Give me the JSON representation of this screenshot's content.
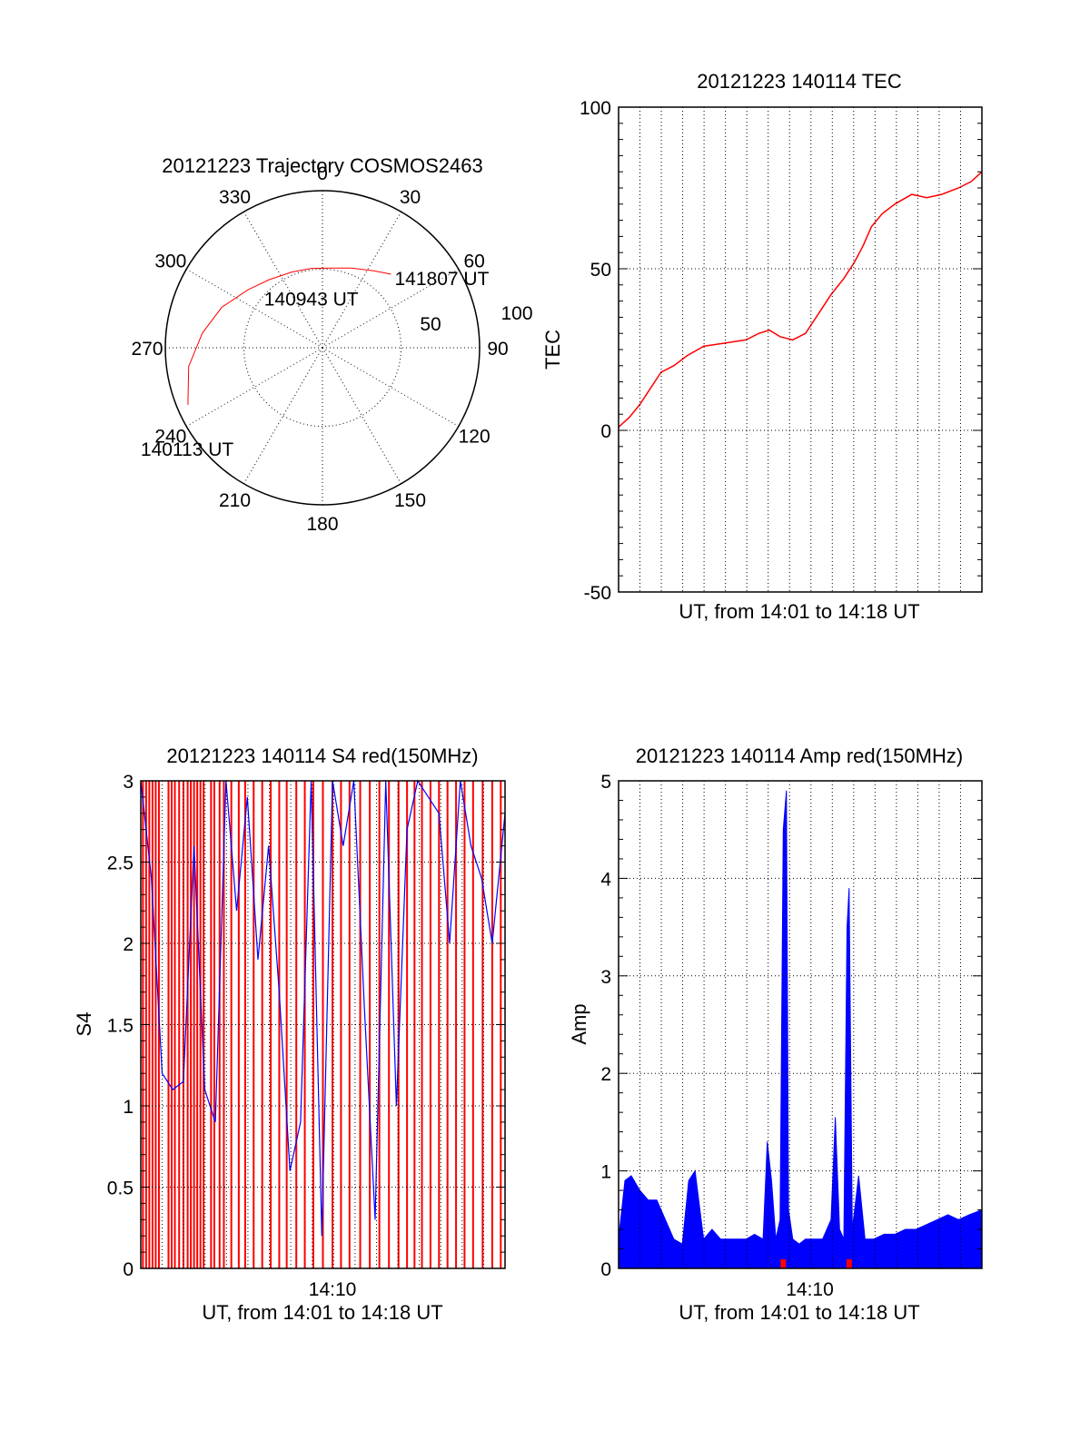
{
  "colors": {
    "red": "#ff0000",
    "blue": "#0000ff",
    "axis": "#000000",
    "grid": "#000000"
  },
  "chart_data": [
    {
      "id": "polar",
      "type": "polar",
      "title": "20121223 Trajectory COSMOS2463",
      "angle_ticks": [
        "0",
        "30",
        "60",
        "90",
        "120",
        "150",
        "180",
        "210",
        "240",
        "270",
        "300",
        "330"
      ],
      "radius_ticks": [
        "50",
        "100"
      ],
      "radius_range": [
        0,
        100
      ],
      "trajectory": {
        "series_color": "red",
        "points": [
          [
            247,
            93
          ],
          [
            262,
            86
          ],
          [
            277,
            77
          ],
          [
            292,
            69
          ],
          [
            308,
            60
          ],
          [
            322,
            55
          ],
          [
            338,
            52
          ],
          [
            352,
            51
          ],
          [
            6,
            51
          ],
          [
            20,
            54
          ],
          [
            34,
            59
          ],
          [
            43,
            64
          ]
        ]
      },
      "annotations": [
        {
          "text": "141807 UT",
          "angle": 43,
          "r": 64
        },
        {
          "text": "140943 UT",
          "angle": 352,
          "r": 51
        },
        {
          "text": "140113 UT",
          "angle": 247,
          "r": 93
        }
      ]
    },
    {
      "id": "tec",
      "type": "line",
      "title": "20121223 140114 TEC",
      "xlabel": "UT, from 14:01 to 14:18 UT",
      "ylabel": "TEC",
      "ylim": [
        -50,
        100
      ],
      "yticks": [
        "-50",
        "0",
        "50",
        "100"
      ],
      "xlim_minutes": [
        1.0,
        18.1
      ],
      "grid": true,
      "series": [
        {
          "color": "red",
          "x": [
            1.0,
            1.5,
            2.0,
            2.5,
            3.0,
            3.6,
            4.2,
            5.0,
            6.0,
            7.0,
            7.6,
            8.1,
            8.6,
            9.2,
            9.8,
            10.4,
            11.0,
            11.6,
            12.1,
            12.5,
            12.9,
            13.4,
            14.0,
            14.8,
            15.5,
            16.2,
            17.0,
            17.6,
            18.1
          ],
          "y": [
            1,
            4,
            8,
            13,
            18,
            20,
            23,
            26,
            27,
            28,
            30,
            31,
            29,
            28,
            30,
            36,
            42,
            47,
            52,
            57,
            63,
            67,
            70,
            73,
            72,
            73,
            75,
            77,
            80
          ]
        }
      ]
    },
    {
      "id": "s4",
      "type": "line",
      "title": "20121223 140114 S4 red(150MHz)",
      "xlabel": "UT, from 14:01 to 14:18 UT",
      "ylabel": "S4",
      "ylim": [
        0,
        3
      ],
      "yticks": [
        "0",
        "0.5",
        "1",
        "1.5",
        "2",
        "2.5",
        "3"
      ],
      "xticks": [
        {
          "label": "14:10",
          "x": 10.0
        }
      ],
      "xlim_minutes": [
        1.0,
        18.1
      ],
      "grid": true,
      "series": [
        {
          "color": "blue",
          "x": [
            1.0,
            1.5,
            2.0,
            2.5,
            3.0,
            3.5,
            4.0,
            4.5,
            5.0,
            5.5,
            6.0,
            6.5,
            7.0,
            7.5,
            8.0,
            8.5,
            9.0,
            9.5,
            10.0,
            10.5,
            11.0,
            11.5,
            12.0,
            12.5,
            13.0,
            13.5,
            14.0,
            14.5,
            15.0,
            15.5,
            16.0,
            16.5,
            17.0,
            17.5,
            18.1
          ],
          "y": [
            3,
            2.4,
            1.2,
            1.1,
            1.15,
            2.6,
            1.1,
            0.9,
            3,
            2.2,
            2.9,
            1.9,
            2.6,
            1.7,
            0.6,
            0.9,
            3,
            0.2,
            3,
            2.6,
            3,
            1.6,
            0.3,
            3,
            1.0,
            2.7,
            3,
            2.9,
            2.8,
            2.0,
            3,
            2.6,
            2.4,
            2.0,
            2.8
          ]
        }
      ],
      "red_spikes_x": [
        1.1,
        1.25,
        1.4,
        1.55,
        1.7,
        1.85,
        2.3,
        2.45,
        2.6,
        2.8,
        3.0,
        3.2,
        3.35,
        3.5,
        3.65,
        3.8,
        3.95,
        4.3,
        4.45,
        4.7,
        4.9,
        5.25,
        5.6,
        5.9,
        6.3,
        6.7,
        7.1,
        7.5,
        7.85,
        8.3,
        8.7,
        9.1,
        9.55,
        10.0,
        10.4,
        10.8,
        11.3,
        11.75,
        12.2,
        12.65,
        13.1,
        13.5,
        13.85,
        14.2,
        14.6,
        15.0,
        15.4,
        15.8,
        16.2,
        16.6,
        17.05,
        17.5,
        17.9
      ]
    },
    {
      "id": "amp",
      "type": "line",
      "title": "20121223 140114 Amp red(150MHz)",
      "xlabel": "UT, from 14:01 to 14:18 UT",
      "ylabel": "Amp",
      "ylim": [
        0,
        5
      ],
      "yticks": [
        "0",
        "1",
        "2",
        "3",
        "4",
        "5"
      ],
      "xticks": [
        {
          "label": "14:10",
          "x": 10.0
        }
      ],
      "xlim_minutes": [
        1.0,
        18.1
      ],
      "grid": true,
      "series": [
        {
          "color": "blue",
          "x": [
            1.0,
            1.3,
            1.6,
            2.0,
            2.4,
            2.8,
            3.2,
            3.6,
            4.0,
            4.3,
            4.6,
            5.0,
            5.4,
            5.8,
            6.2,
            6.6,
            7.0,
            7.4,
            7.8,
            8.0,
            8.2,
            8.4,
            8.6,
            8.75,
            8.9,
            9.0,
            9.2,
            9.5,
            9.8,
            10.2,
            10.6,
            11.0,
            11.2,
            11.4,
            11.6,
            11.75,
            11.85,
            12.0,
            12.3,
            12.6,
            13.0,
            13.5,
            14.0,
            14.5,
            15.0,
            15.5,
            16.0,
            16.5,
            17.0,
            17.5,
            18.1
          ],
          "y": [
            0.3,
            0.9,
            0.95,
            0.8,
            0.7,
            0.7,
            0.5,
            0.3,
            0.25,
            0.9,
            1.0,
            0.3,
            0.4,
            0.3,
            0.3,
            0.3,
            0.3,
            0.35,
            0.3,
            1.3,
            0.9,
            0.3,
            0.5,
            4.5,
            4.9,
            0.6,
            0.3,
            0.25,
            0.3,
            0.3,
            0.3,
            0.5,
            1.55,
            0.4,
            0.3,
            3.5,
            3.9,
            0.4,
            0.95,
            0.3,
            0.3,
            0.35,
            0.35,
            0.4,
            0.4,
            0.45,
            0.5,
            0.55,
            0.5,
            0.55,
            0.6
          ]
        }
      ],
      "red_spikes_x": [
        8.75,
        11.85
      ]
    }
  ]
}
